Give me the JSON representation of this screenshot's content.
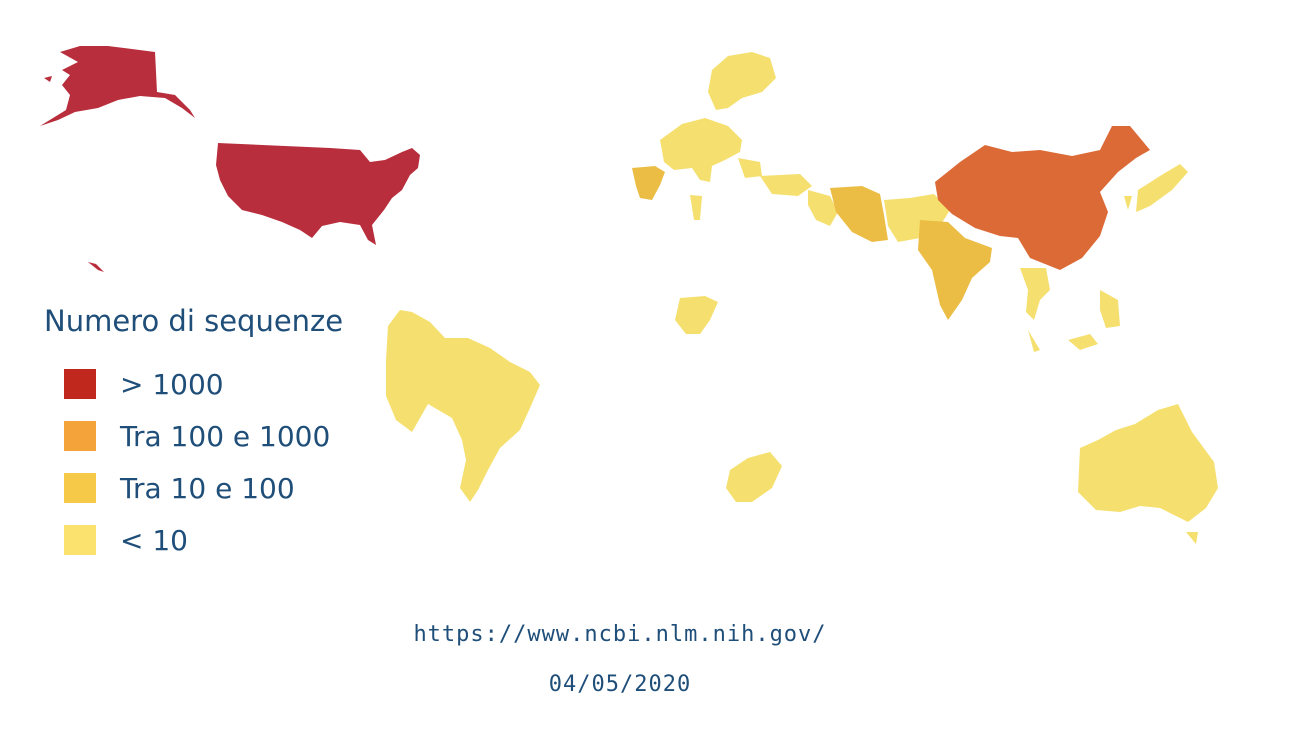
{
  "legend": {
    "title": "Numero di sequenze",
    "items": [
      {
        "label": "> 1000",
        "color": "#c0281e"
      },
      {
        "label": "Tra 100 e 1000",
        "color": "#f4a23a"
      },
      {
        "label": "Tra 10 e 100",
        "color": "#f7c948"
      },
      {
        "label": "< 10",
        "color": "#fbe26e"
      }
    ]
  },
  "source": {
    "url": "https://www.ncbi.nlm.nih.gov/",
    "date": "04/05/2020"
  },
  "map_colors": {
    "usa": "#b82e3d",
    "china": "#dc6a36",
    "medium": "#ebbd45",
    "low": "#f5e06f"
  }
}
